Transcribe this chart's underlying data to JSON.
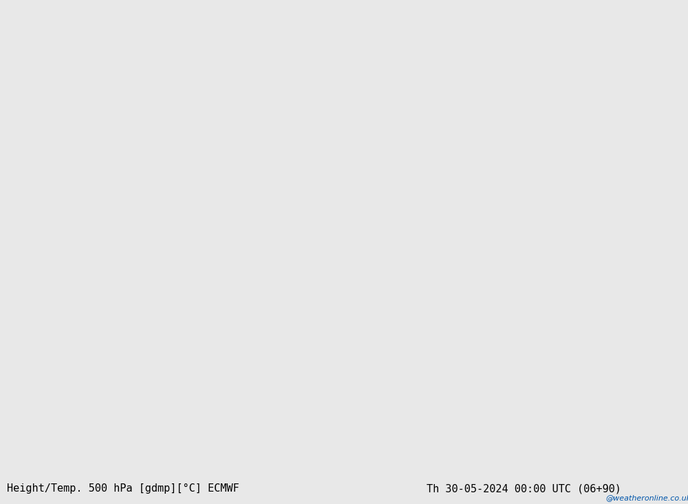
{
  "title_left": "Height/Temp. 500 hPa [gdmp][°C] ECMWF",
  "title_right": "Th 30-05-2024 00:00 UTC (06+90)",
  "watermark": "@weatheronline.co.uk",
  "background_color": "#d8d8d8",
  "land_color": "#c8c8c8",
  "australia_fill": "#b8e8a0",
  "nz_fill": "#b8e8a0",
  "islands_fill": "#b8e8a0",
  "ocean_color": "#e8e8e8",
  "height_line_color": "#000000",
  "temp_colors": {
    "pos15": "#ff6600",
    "pos10": "#ff8c00",
    "pos5": "#ffa500",
    "zero": "#ffcc00",
    "neg5": "#ff0000",
    "neg10": "#ff3300",
    "neg15": "#ff6600",
    "neg20": "#90ee90",
    "neg25": "#00ced1",
    "neg30": "#00bcd4",
    "neg35": "#0099cc"
  },
  "lon_min": 90,
  "lon_max": 200,
  "lat_min": -70,
  "lat_max": 10,
  "figsize": [
    10,
    7.33
  ],
  "dpi": 100
}
